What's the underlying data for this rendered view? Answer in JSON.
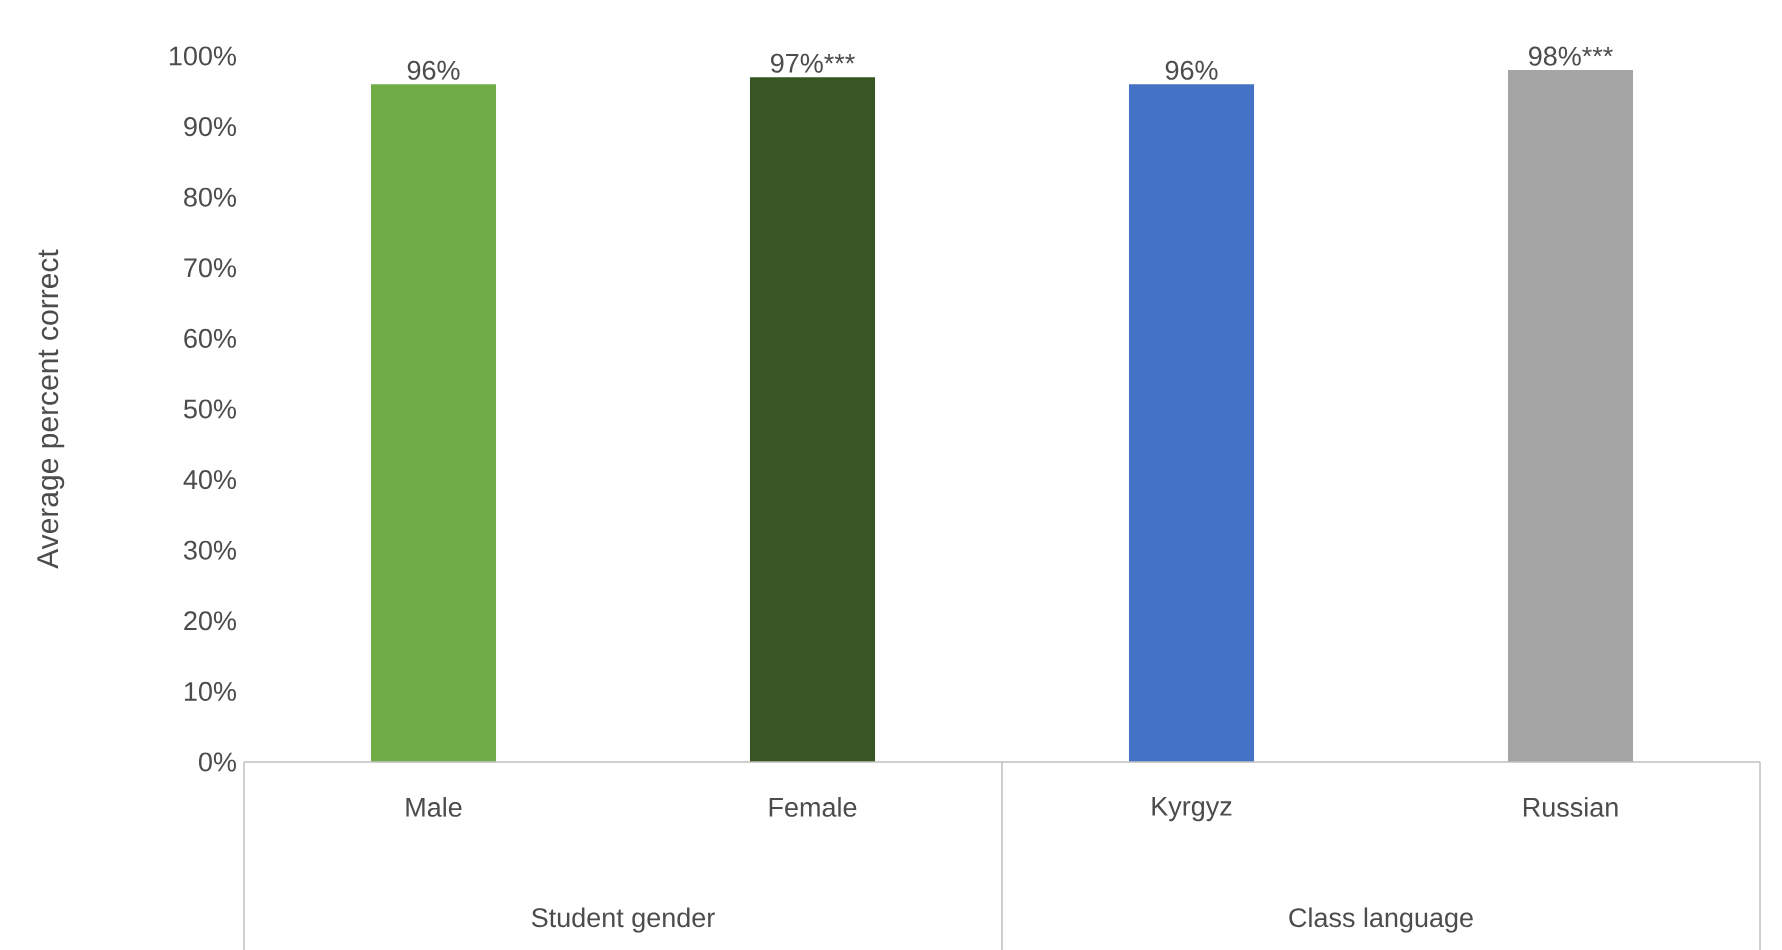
{
  "chart_data": {
    "type": "bar",
    "ylabel": "Average percent correct",
    "categories": [
      "Male",
      "Female",
      "Kyrgyz",
      "Russian"
    ],
    "values": [
      96,
      97,
      96,
      98
    ],
    "colors": [
      "#70ad47",
      "#375623",
      "#4472c4",
      "#a5a5a5"
    ],
    "value_labels": [
      "96%",
      "97%***",
      "96%",
      "98%***"
    ],
    "ylim": [
      0,
      100
    ],
    "yticks": [
      {
        "value": 0,
        "label": "0%"
      },
      {
        "value": 10,
        "label": "10%"
      },
      {
        "value": 20,
        "label": "20%"
      },
      {
        "value": 30,
        "label": "30%"
      },
      {
        "value": 40,
        "label": "40%"
      },
      {
        "value": 50,
        "label": "50%"
      },
      {
        "value": 60,
        "label": "60%"
      },
      {
        "value": 70,
        "label": "70%"
      },
      {
        "value": 80,
        "label": "80%"
      },
      {
        "value": 90,
        "label": "90%"
      },
      {
        "value": 100,
        "label": "100%"
      }
    ],
    "annotations": [
      "Student gender",
      "Class language"
    ]
  }
}
